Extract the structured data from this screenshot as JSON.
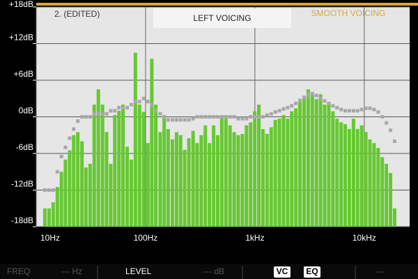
{
  "header": {
    "preset": "2.  (EDITED)",
    "voicing": "LEFT VOICING",
    "mode": "SMOOTH VOICING"
  },
  "footer": {
    "freq_label": "FREQ",
    "freq_value": "--- Hz",
    "level_label": "LEVEL",
    "level_value": "--- dB",
    "vc": "VC",
    "eq": "EQ",
    "extra": "---"
  },
  "chart_data": {
    "type": "bar",
    "log_x": true,
    "grid": true,
    "xlim": [
      10,
      26000
    ],
    "xticks": [
      {
        "value": 10,
        "label": "10Hz"
      },
      {
        "value": 100,
        "label": "100Hz"
      },
      {
        "value": 1000,
        "label": "1kHz"
      },
      {
        "value": 10000,
        "label": "10kHz"
      }
    ],
    "ylim": [
      -18,
      18
    ],
    "yticks": [
      {
        "value": -18,
        "label": "-18dB"
      },
      {
        "value": -12,
        "label": "-12dB"
      },
      {
        "value": -6,
        "label": "-6dB"
      },
      {
        "value": 0,
        "label": "0dB"
      },
      {
        "value": 6,
        "label": "+6dB"
      },
      {
        "value": 12,
        "label": "+12dB"
      },
      {
        "value": 18,
        "label": "+18dB"
      }
    ],
    "x": [
      12,
      13.1,
      14.3,
      15.6,
      17,
      18.5,
      20.2,
      22,
      24,
      26.2,
      28.5,
      31.1,
      33.9,
      37,
      40.4,
      44,
      48,
      52.3,
      57.1,
      62.2,
      67.9,
      74,
      80.7,
      88,
      96,
      105,
      114,
      124,
      136,
      148,
      161,
      176,
      192,
      209,
      228,
      249,
      272,
      296,
      323,
      352,
      384,
      419,
      457,
      498,
      543,
      592,
      646,
      704,
      768,
      837,
      913,
      996,
      1086,
      1184,
      1292,
      1409,
      1536,
      1675,
      1827,
      1992,
      2172,
      2369,
      2583,
      2817,
      3072,
      3350,
      3653,
      3984,
      4345,
      4738,
      5167,
      5634,
      6144,
      6700,
      7306,
      7968,
      8689,
      9475,
      10333,
      11268,
      12288,
      13400,
      14613,
      15935,
      17377,
      18950
    ],
    "series": [
      {
        "type": "bar",
        "color": "#66c832",
        "values": [
          -15,
          -15,
          -14,
          -11.5,
          -9,
          -7,
          -5.5,
          -3,
          -2.5,
          -4,
          -8.3,
          -7.7,
          2,
          4.5,
          2,
          -2.5,
          -7.7,
          0.3,
          1,
          2,
          -4.9,
          -7,
          10.5,
          2,
          0.8,
          -4.3,
          9.5,
          2,
          -2.5,
          0.3,
          -2,
          -3.7,
          -2.5,
          -3,
          -5.4,
          -3.5,
          -2.3,
          -4.3,
          -3,
          -1.4,
          -4.3,
          -1.4,
          -3,
          0.3,
          -0.3,
          -1.4,
          -2.5,
          -3,
          -2.8,
          -1.4,
          -0.9,
          0.9,
          2,
          -2,
          -2.8,
          -1.7,
          -0.5,
          -0.3,
          0.3,
          -0.3,
          0.9,
          1.4,
          2.6,
          3.1,
          4.5,
          3.7,
          2.9,
          3.7,
          2,
          2,
          0.9,
          -0.3,
          -0.9,
          -1.2,
          -2,
          -0.3,
          -2,
          -1.4,
          -2.5,
          -3.7,
          -4.3,
          -5.1,
          -6.6,
          -7.7,
          -9.2,
          -15
        ]
      },
      {
        "type": "scatter",
        "color": "#a8a8a8",
        "values": [
          -12,
          -12,
          -12,
          -9,
          -6.5,
          -5,
          -3.5,
          -2,
          -0.7,
          0,
          0,
          0,
          0.5,
          0.5,
          0.5,
          0.5,
          1,
          1,
          1.5,
          1.5,
          1.5,
          2,
          2.5,
          2.5,
          3,
          2.5,
          2,
          1,
          0.5,
          0,
          -0.5,
          -0.5,
          -0.5,
          -0.5,
          -0.5,
          -0.5,
          -0.3,
          0,
          0,
          0,
          0,
          0,
          0,
          0,
          0,
          0,
          0,
          -0.3,
          -0.3,
          -0.3,
          0,
          0,
          0,
          0,
          0.3,
          0.5,
          0.8,
          1,
          1.3,
          1.5,
          1.8,
          2.2,
          2.7,
          3.2,
          3.6,
          3.8,
          3.5,
          3,
          2.6,
          2.2,
          1.8,
          1.5,
          1.2,
          1,
          1,
          1,
          1,
          1.2,
          1.4,
          1.4,
          1.2,
          0.8,
          0,
          -1,
          -2.2,
          -4
        ]
      }
    ]
  }
}
